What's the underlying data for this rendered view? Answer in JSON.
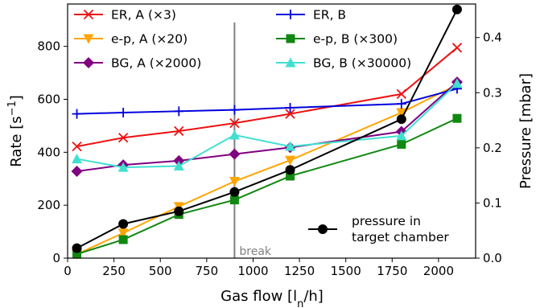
{
  "chart_data": {
    "type": "line",
    "xlabel": "Gas flow [l",
    "xlabel_sub": "n",
    "xlabel_tail": "/h]",
    "ylabel": "Rate [s",
    "ylabel_sup": "−1",
    "ylabel_tail": "]",
    "ylabel_right": "Pressure [mbar]",
    "xlim": [
      0,
      2200
    ],
    "ylim": [
      0,
      960
    ],
    "ylim_right": [
      0,
      0.4608
    ],
    "xticks": [
      0,
      250,
      500,
      750,
      1000,
      1250,
      1500,
      1750,
      2000
    ],
    "yticks": [
      0,
      200,
      400,
      600,
      800
    ],
    "yticks_right": [
      0.0,
      0.1,
      0.2,
      0.3,
      0.4
    ],
    "yticks_right_labels": [
      "0.0",
      "0.1",
      "0.2",
      "0.3",
      "0.4"
    ],
    "grid": false,
    "legend_position": "top",
    "annotations": [
      {
        "type": "vline",
        "x": 900,
        "y_top": 890,
        "label": "break",
        "color": "#808080"
      }
    ],
    "series": [
      {
        "name": "ER, A (×3)",
        "color": "#ee1111",
        "marker": "x",
        "x": [
          50,
          300,
          600,
          900,
          1200,
          1800,
          2100
        ],
        "y": [
          422,
          455,
          480,
          510,
          545,
          620,
          795
        ]
      },
      {
        "name": "e-p, A (×20)",
        "color": "#ffa500",
        "marker": "triangle-down",
        "x": [
          50,
          300,
          600,
          900,
          1200,
          1800,
          2100
        ],
        "y": [
          15,
          95,
          195,
          290,
          370,
          550,
          655
        ]
      },
      {
        "name": "BG, A (×2000)",
        "color": "#800080",
        "marker": "diamond",
        "x": [
          50,
          300,
          600,
          900,
          1200,
          1800,
          2100
        ],
        "y": [
          328,
          352,
          368,
          393,
          418,
          478,
          665
        ]
      },
      {
        "name": "ER, B",
        "color": "#0000dd",
        "marker": "plus",
        "x": [
          50,
          300,
          600,
          900,
          1200,
          1800,
          2100
        ],
        "y": [
          545,
          550,
          555,
          560,
          568,
          583,
          640
        ]
      },
      {
        "name": "e-p, B (×300)",
        "color": "#118811",
        "marker": "square",
        "x": [
          50,
          300,
          600,
          900,
          1200,
          1800,
          2100
        ],
        "y": [
          15,
          70,
          165,
          220,
          310,
          430,
          528
        ]
      },
      {
        "name": "BG, B (×30000)",
        "color": "#40e0d0",
        "marker": "triangle-up",
        "x": [
          50,
          300,
          600,
          900,
          1200,
          1800,
          2100
        ],
        "y": [
          375,
          343,
          348,
          465,
          422,
          462,
          660
        ]
      },
      {
        "name": "pressure in",
        "name_line2": "target chamber",
        "color": "#000000",
        "marker": "circle",
        "axis": "right",
        "x": [
          50,
          300,
          600,
          900,
          1200,
          1800,
          2100
        ],
        "y": [
          0.018,
          0.062,
          0.085,
          0.12,
          0.16,
          0.252,
          0.451
        ]
      }
    ]
  }
}
